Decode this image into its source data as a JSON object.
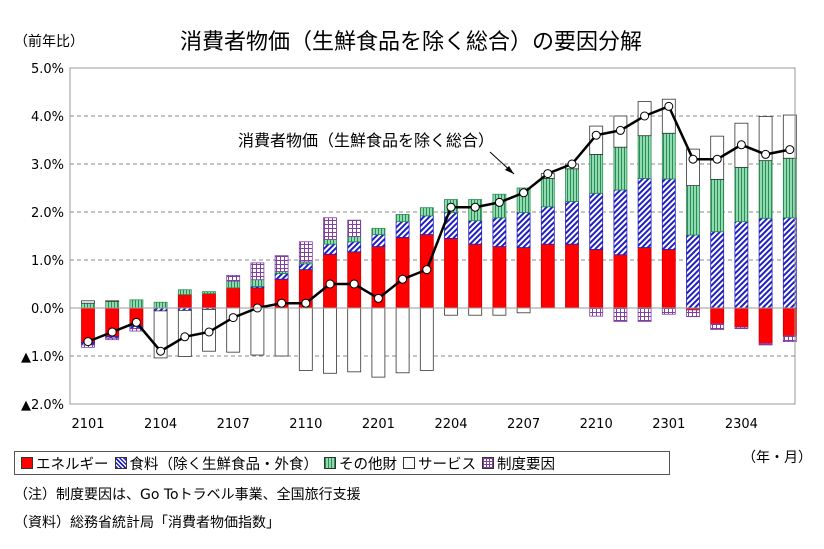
{
  "title": "消費者物価（生鮮食品を除く総合）の要因分解",
  "unit_label": "（前年比）",
  "x_unit_label": "（年・月）",
  "notes": [
    "（注）制度要因は、Go Toトラベル事業、全国旅行支援",
    "（資料）総務省統計局「消費者物価指数」"
  ],
  "chart_data": {
    "type": "bar",
    "stacked": true,
    "title": "消費者物価（生鮮食品を除く総合）の要因分解",
    "ylabel": "（前年比）",
    "xlabel": "（年・月）",
    "ylim": [
      -2.0,
      5.0
    ],
    "y_ticks": [
      5.0,
      4.0,
      3.0,
      2.0,
      1.0,
      0.0,
      -1.0,
      -2.0
    ],
    "y_tick_labels": [
      "5.0%",
      "4.0%",
      "3.0%",
      "2.0%",
      "1.0%",
      "0.0%",
      "▲1.0%",
      "▲2.0%"
    ],
    "grid": "horizontal dashed",
    "legend_position": "bottom",
    "categories": [
      "2101",
      "2102",
      "2103",
      "2104",
      "2105",
      "2106",
      "2107",
      "2108",
      "2109",
      "2110",
      "2111",
      "2112",
      "2201",
      "2202",
      "2203",
      "2204",
      "2205",
      "2206",
      "2207",
      "2208",
      "2209",
      "2210",
      "2211",
      "2212",
      "2301",
      "2302",
      "2303",
      "2304",
      "2305",
      "2306"
    ],
    "x_tick_labels": [
      "2101",
      "2104",
      "2107",
      "2110",
      "2201",
      "2204",
      "2207",
      "2210",
      "2301",
      "2304"
    ],
    "series": [
      {
        "name": "エネルギー",
        "color": "#ff0000",
        "pattern": "solid",
        "values": [
          -0.72,
          -0.6,
          -0.38,
          0.0,
          0.28,
          0.3,
          0.42,
          0.42,
          0.6,
          0.8,
          1.12,
          1.17,
          1.28,
          1.47,
          1.53,
          1.45,
          1.33,
          1.28,
          1.26,
          1.33,
          1.33,
          1.22,
          1.11,
          1.26,
          1.22,
          -0.04,
          -0.33,
          -0.4,
          -0.74,
          -0.58
        ]
      },
      {
        "name": "食料（除く生鮮食品・外食）",
        "color": "#2020c0",
        "pattern": "diagonal",
        "values": [
          -0.05,
          -0.03,
          -0.05,
          -0.06,
          -0.05,
          -0.03,
          0.0,
          0.03,
          0.12,
          0.12,
          0.21,
          0.21,
          0.25,
          0.33,
          0.39,
          0.54,
          0.49,
          0.6,
          0.73,
          0.78,
          0.89,
          1.17,
          1.35,
          1.44,
          1.47,
          1.52,
          1.59,
          1.8,
          1.87,
          1.88
        ]
      },
      {
        "name": "その他財",
        "color": "#3cb371",
        "pattern": "vertical",
        "values": [
          0.1,
          0.14,
          0.17,
          0.12,
          0.1,
          0.04,
          0.14,
          0.14,
          0.04,
          0.04,
          0.1,
          0.11,
          0.13,
          0.15,
          0.17,
          0.27,
          0.44,
          0.49,
          0.51,
          0.59,
          0.68,
          0.81,
          0.89,
          0.89,
          0.95,
          1.03,
          1.09,
          1.13,
          1.2,
          1.24
        ]
      },
      {
        "name": "サービス",
        "color": "#ffffff",
        "pattern": "outline",
        "values": [
          0.05,
          0.01,
          0.0,
          -0.98,
          -0.96,
          -0.87,
          -0.92,
          -0.98,
          -1.0,
          -1.3,
          -1.36,
          -1.33,
          -1.44,
          -1.35,
          -1.3,
          -0.15,
          -0.15,
          -0.15,
          -0.1,
          0.1,
          0.1,
          0.59,
          0.65,
          0.71,
          0.71,
          0.76,
          0.9,
          0.92,
          0.92,
          0.9
        ]
      },
      {
        "name": "制度要因",
        "color": "#8040a0",
        "pattern": "grid",
        "values": [
          -0.05,
          -0.03,
          -0.05,
          0,
          0,
          0,
          0.12,
          0.35,
          0.33,
          0.42,
          0.45,
          0.34,
          0,
          0,
          0,
          0,
          0,
          0,
          0,
          0,
          0,
          -0.17,
          -0.28,
          -0.28,
          -0.13,
          -0.14,
          -0.12,
          -0.03,
          -0.03,
          -0.12
        ]
      }
    ],
    "line": {
      "name": "消費者物価（生鮮食品を除く総合）",
      "color": "#000000",
      "values": [
        -0.7,
        -0.5,
        -0.3,
        -0.9,
        -0.6,
        -0.5,
        -0.2,
        0.0,
        0.1,
        0.1,
        0.5,
        0.5,
        0.2,
        0.6,
        0.8,
        2.1,
        2.1,
        2.2,
        2.4,
        2.8,
        3.0,
        3.6,
        3.7,
        4.0,
        4.2,
        3.1,
        3.1,
        3.4,
        3.2,
        3.3
      ]
    },
    "annotation": "消費者物価（生鮮食品を除く総合）"
  }
}
